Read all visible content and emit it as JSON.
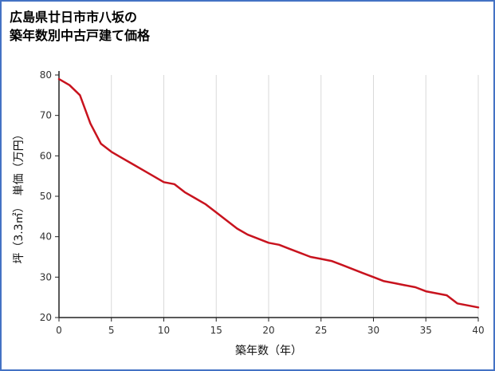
{
  "page": {
    "title_line1": "広島県廿日市市八坂の",
    "title_line2": "築年数別中古戸建て価格"
  },
  "chart_data": {
    "type": "line",
    "title": "広島県廿日市市八坂の築年数別中古戸建て価格",
    "xlabel": "築年数（年）",
    "ylabel": "坪（3.3㎡）　単価（万円）",
    "x": [
      0,
      1,
      2,
      3,
      4,
      5,
      6,
      7,
      8,
      9,
      10,
      11,
      12,
      13,
      14,
      15,
      16,
      17,
      18,
      19,
      20,
      21,
      22,
      23,
      24,
      25,
      26,
      27,
      28,
      29,
      30,
      31,
      32,
      33,
      34,
      35,
      36,
      37,
      38,
      39,
      40
    ],
    "values": [
      79,
      77.5,
      75,
      68,
      63,
      61,
      59.5,
      58,
      56.5,
      55,
      53.5,
      53,
      51,
      49.5,
      48,
      46,
      44,
      42,
      40.5,
      39.5,
      38.5,
      38,
      37,
      36,
      35,
      34.5,
      34,
      33,
      32,
      31,
      30,
      29,
      28.5,
      28,
      27.5,
      26.5,
      26,
      25.5,
      23.5,
      23,
      22.5
    ],
    "xlim": [
      0,
      40
    ],
    "ylim": [
      20,
      80
    ],
    "xticks": [
      0,
      5,
      10,
      15,
      20,
      25,
      30,
      35,
      40
    ],
    "yticks": [
      20,
      30,
      40,
      50,
      60,
      70,
      80
    ],
    "grid": "vertical-only",
    "legend": "none",
    "line_color": "#c8131e",
    "axis_color": "#222222",
    "grid_color": "#d9d9d9",
    "border_color": "#4472c4"
  }
}
